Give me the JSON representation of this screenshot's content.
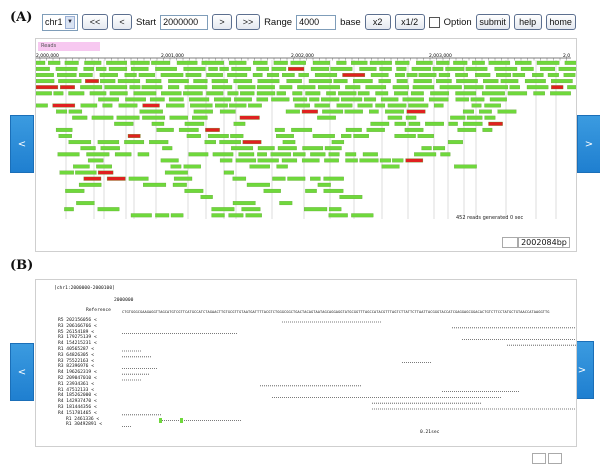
{
  "panel_a_label": "(A)",
  "panel_b_label": "(B)",
  "toolbar": {
    "chrom_selected": "chr1",
    "prev_far": "<<",
    "prev": "<",
    "start_label": "Start",
    "start_value": "2000000",
    "next": ">",
    "next_far": ">>",
    "range_label": "Range",
    "range_value": "4000",
    "base_label": "base",
    "zoom_in": "x2",
    "zoom_out": "x1/2",
    "option_label": "Option",
    "submit": "submit",
    "help": "help",
    "home": "home"
  },
  "nav": {
    "left": "<",
    "right": ">"
  },
  "panelA": {
    "track_label": "Reads",
    "ruler_ticks": [
      "2,000,000",
      "2,001,000",
      "2,002,000",
      "2,003,000",
      "2,0"
    ],
    "status": "452 reads generated 0 sec",
    "position_readout": "2002084bp"
  },
  "panelB": {
    "region": "[chr1:2000000-2000100]",
    "start_marker": "2000000",
    "reference_label": "Reference",
    "reads": [
      "R5 202156056 <",
      "R3 206166766 <",
      "R5 26154189 <",
      "R3 179275139 <",
      "R4 154215231 <",
      "R1 40565287 <",
      "R3 64826305 <",
      "R3 75522163 <",
      "R3 82396976 <",
      "R4 196262319 <",
      "R2 209047010 <",
      "R1 23934361 <",
      "R1 47512133 <",
      "R4 185262000 <",
      "R4 142937470 <",
      "R3 181444356 <",
      "R4 151781465 <",
      "R1 2461336 <",
      "R1 30492891 <"
    ],
    "status": "0.21sec"
  },
  "colors": {
    "read_green": "#6fd83c",
    "read_red": "#e02020",
    "nav_blue": "#2388d8",
    "badge_pink": "#f7c8f0"
  }
}
